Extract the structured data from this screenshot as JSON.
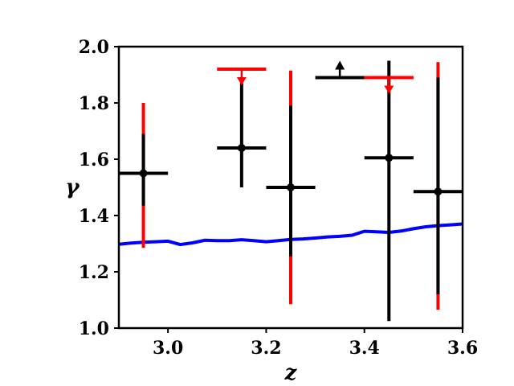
{
  "chart_data": {
    "type": "scatter",
    "title": "",
    "xlabel": "z",
    "ylabel": "γ",
    "xlim": [
      2.9,
      3.6
    ],
    "ylim": [
      1.0,
      2.0
    ],
    "x_ticks": [
      3.0,
      3.2,
      3.4,
      3.6
    ],
    "x_tick_labels": [
      "3.0",
      "3.2",
      "3.4",
      "3.6"
    ],
    "y_ticks": [
      1.0,
      1.2,
      1.4,
      1.6,
      1.8,
      2.0
    ],
    "y_tick_labels": [
      "1.0",
      "1.2",
      "1.4",
      "1.6",
      "1.8",
      "2.0"
    ],
    "grid": false,
    "colors": {
      "points": "#000000",
      "outer_errors": "#ff0000",
      "model_line": "#0000ff"
    },
    "series": [
      {
        "kind": "points_with_errors",
        "points": [
          {
            "x": 2.95,
            "x_lo": 2.9,
            "x_hi": 3.0,
            "y": 1.55,
            "y_lo": 1.435,
            "y_hi": 1.69,
            "y_lo_outer": 1.285,
            "y_hi_outer": 1.8
          },
          {
            "x": 3.15,
            "x_lo": 3.1,
            "x_hi": 3.2,
            "y": 1.64,
            "y_lo": 1.5,
            "y_hi": 1.87,
            "y_lo_outer": null,
            "y_hi_outer": null
          },
          {
            "x": 3.25,
            "x_lo": 3.2,
            "x_hi": 3.3,
            "y": 1.5,
            "y_lo": 1.255,
            "y_hi": 1.79,
            "y_lo_outer": 1.085,
            "y_hi_outer": 1.915
          },
          {
            "x": 3.45,
            "x_lo": 3.4,
            "x_hi": 3.5,
            "y": 1.605,
            "y_lo": 1.025,
            "y_hi": 1.95,
            "y_lo_outer": null,
            "y_hi_outer": null
          },
          {
            "x": 3.55,
            "x_lo": 3.5,
            "x_hi": 3.6,
            "y": 1.485,
            "y_lo": 1.12,
            "y_hi": 1.89,
            "y_lo_outer": 1.065,
            "y_hi_outer": 1.945
          }
        ]
      },
      {
        "kind": "upper_limits",
        "color": "#ff0000",
        "limits": [
          {
            "x": 3.15,
            "x_lo": 3.1,
            "x_hi": 3.2,
            "y": 1.92
          },
          {
            "x": 3.45,
            "x_lo": 3.4,
            "x_hi": 3.5,
            "y": 1.89
          }
        ]
      },
      {
        "kind": "lower_limits",
        "color": "#000000",
        "limits": [
          {
            "x": 3.35,
            "x_lo": 3.3,
            "x_hi": 3.4,
            "y": 1.89
          }
        ]
      },
      {
        "kind": "line",
        "color": "#0000ff",
        "x": [
          2.9,
          2.925,
          2.95,
          2.975,
          3.0,
          3.025,
          3.05,
          3.075,
          3.1,
          3.125,
          3.15,
          3.175,
          3.2,
          3.225,
          3.25,
          3.275,
          3.3,
          3.325,
          3.35,
          3.375,
          3.4,
          3.425,
          3.45,
          3.475,
          3.5,
          3.525,
          3.55,
          3.575,
          3.6
        ],
        "y": [
          1.298,
          1.302,
          1.305,
          1.307,
          1.309,
          1.297,
          1.303,
          1.312,
          1.311,
          1.311,
          1.314,
          1.311,
          1.307,
          1.311,
          1.315,
          1.317,
          1.32,
          1.324,
          1.326,
          1.33,
          1.344,
          1.342,
          1.34,
          1.345,
          1.353,
          1.36,
          1.364,
          1.367,
          1.37
        ]
      }
    ]
  }
}
